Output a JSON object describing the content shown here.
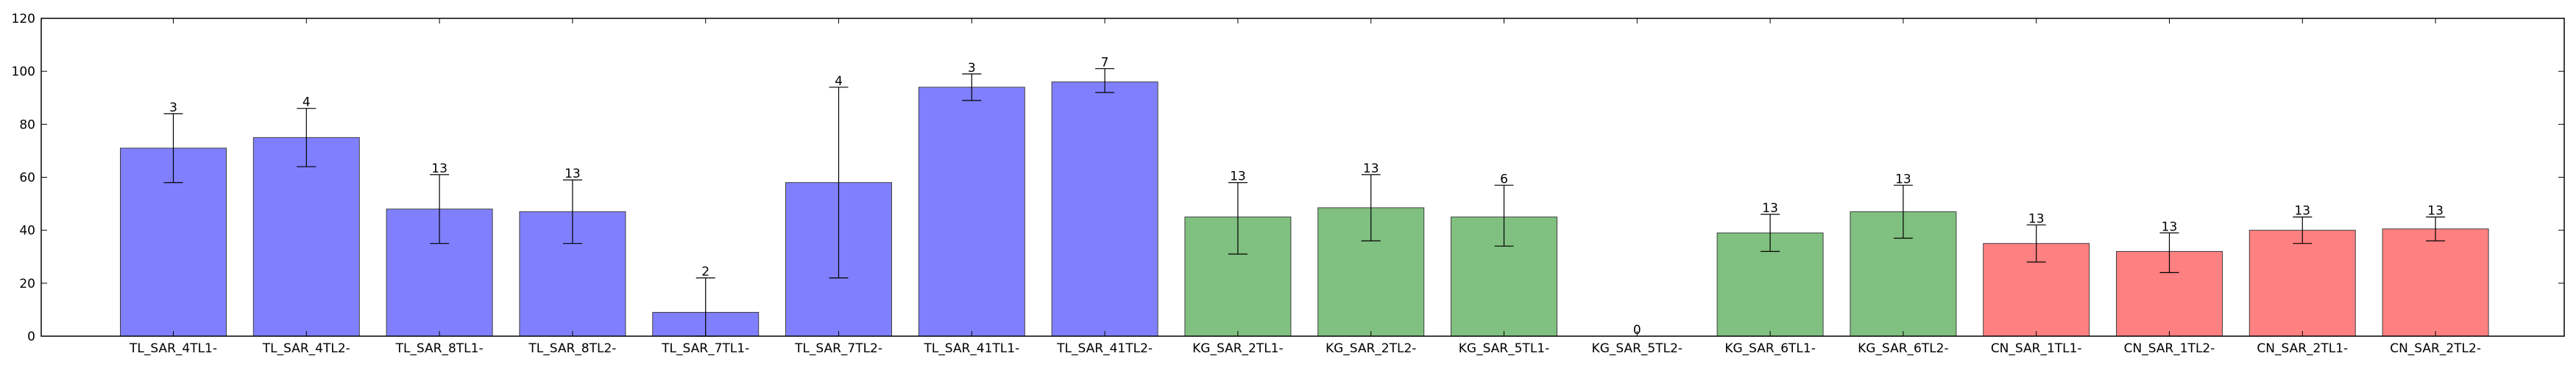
{
  "chart_data": {
    "type": "bar",
    "title": "",
    "xlabel": "",
    "ylabel": "",
    "ylim": [
      0,
      120
    ],
    "yticks": [
      0,
      20,
      40,
      60,
      80,
      100,
      120
    ],
    "grid": false,
    "categories": [
      "TL_SAR_4TL1-",
      "TL_SAR_4TL2-",
      "TL_SAR_8TL1-",
      "TL_SAR_8TL2-",
      "TL_SAR_7TL1-",
      "TL_SAR_7TL2-",
      "TL_SAR_41TL1-",
      "TL_SAR_41TL2-",
      "KG_SAR_2TL1-",
      "KG_SAR_2TL2-",
      "KG_SAR_5TL1-",
      "KG_SAR_5TL2-",
      "KG_SAR_6TL1-",
      "KG_SAR_6TL2-",
      "CN_SAR_1TL1-",
      "CN_SAR_1TL2-",
      "CN_SAR_2TL1-",
      "CN_SAR_2TL2-"
    ],
    "values": [
      71,
      75,
      48,
      47,
      9,
      58,
      94,
      96,
      45,
      48.5,
      45,
      0,
      39,
      47,
      35,
      32,
      40,
      40.5
    ],
    "error_low": [
      58,
      64,
      35,
      35,
      0,
      22,
      89,
      92,
      31,
      36,
      34,
      0,
      32,
      37,
      28,
      24,
      35,
      36
    ],
    "error_high": [
      84,
      86,
      61,
      59,
      22,
      94,
      99,
      101,
      58,
      61,
      57,
      0,
      46,
      57,
      42,
      39,
      45,
      45
    ],
    "labels": [
      "3",
      "4",
      "13",
      "13",
      "2",
      "4",
      "3",
      "7",
      "13",
      "13",
      "6",
      "0",
      "13",
      "13",
      "13",
      "13",
      "13",
      "13"
    ],
    "group": [
      "blue",
      "blue",
      "blue",
      "blue",
      "blue",
      "blue",
      "blue",
      "blue",
      "green",
      "green",
      "green",
      "green",
      "green",
      "green",
      "red",
      "red",
      "red",
      "red"
    ],
    "colors": {
      "blue": "#8080ff",
      "green": "#80c080",
      "red": "#ff8080",
      "edge": "#404040",
      "axis": "#000000"
    }
  }
}
